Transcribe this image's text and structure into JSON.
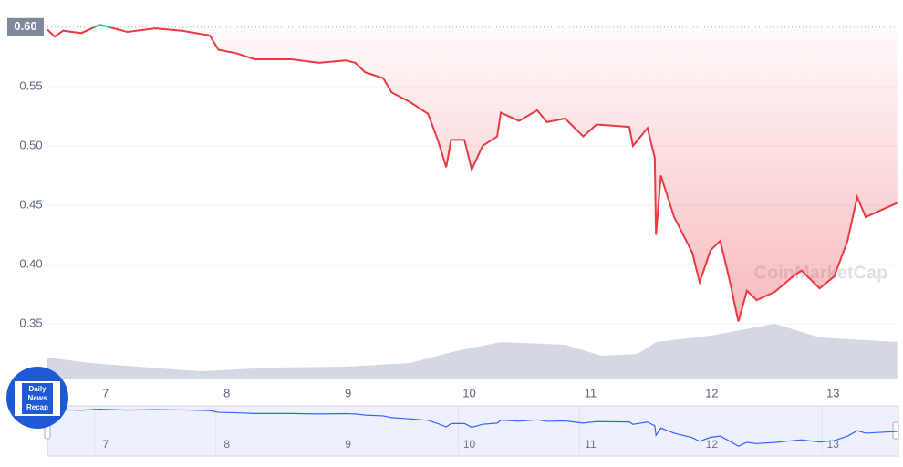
{
  "chart_data": {
    "type": "line",
    "x": [
      6.52,
      6.58,
      6.65,
      6.8,
      6.95,
      7.03,
      7.18,
      7.41,
      7.63,
      7.86,
      7.93,
      8.08,
      8.23,
      8.53,
      8.76,
      8.98,
      9.06,
      9.14,
      9.29,
      9.36,
      9.51,
      9.66,
      9.74,
      9.81,
      9.85,
      9.96,
      10.02,
      10.11,
      10.23,
      10.26,
      10.41,
      10.56,
      10.64,
      10.79,
      10.94,
      11.05,
      11.32,
      11.35,
      11.47,
      11.53,
      11.54,
      11.58,
      11.69,
      11.84,
      11.9,
      11.99,
      12.07,
      12.14,
      12.22,
      12.29,
      12.37,
      12.52,
      12.67,
      12.74,
      12.89,
      13.01,
      13.12,
      13.2,
      13.27,
      13.42,
      13.53
    ],
    "series": [
      {
        "color": "#ea3943",
        "color_above": "#16c784",
        "values": [
          0.598,
          0.592,
          0.597,
          0.595,
          0.602,
          0.6,
          0.596,
          0.599,
          0.597,
          0.593,
          0.581,
          0.578,
          0.573,
          0.573,
          0.57,
          0.572,
          0.57,
          0.562,
          0.557,
          0.545,
          0.537,
          0.527,
          0.505,
          0.482,
          0.505,
          0.505,
          0.48,
          0.5,
          0.508,
          0.528,
          0.521,
          0.53,
          0.52,
          0.523,
          0.508,
          0.518,
          0.516,
          0.5,
          0.515,
          0.49,
          0.425,
          0.475,
          0.44,
          0.41,
          0.385,
          0.412,
          0.42,
          0.39,
          0.352,
          0.378,
          0.37,
          0.377,
          0.39,
          0.395,
          0.38,
          0.39,
          0.42,
          0.457,
          0.44,
          0.447,
          0.452
        ]
      }
    ],
    "volume": {
      "color": "#d3d8e4",
      "x": [
        6.52,
        6.88,
        7.26,
        7.78,
        8.38,
        8.98,
        9.51,
        9.89,
        10.26,
        10.79,
        11.09,
        11.39,
        11.54,
        11.99,
        12.52,
        12.89,
        13.27,
        13.53
      ],
      "values": [
        23,
        17,
        13,
        8,
        12,
        13,
        17,
        30,
        40,
        37,
        25,
        27,
        40,
        47,
        60,
        45,
        42,
        40
      ],
      "ylim": [
        0,
        120
      ]
    },
    "xlim": [
      6.52,
      13.54
    ],
    "xticks": [
      7,
      8,
      9,
      10,
      11,
      12,
      13
    ],
    "ylim": [
      0.304,
      0.606
    ],
    "yticks": [
      {
        "value": 0.6,
        "label": "0.60"
      },
      0.55,
      {
        "value": 0.5,
        "label": "0.50"
      },
      0.45,
      {
        "value": 0.4,
        "label": "0.40"
      },
      0.35
    ],
    "grid": true,
    "watermark": "CoinMarketCap",
    "badge": [
      "Daily",
      "News",
      "Recap"
    ]
  }
}
